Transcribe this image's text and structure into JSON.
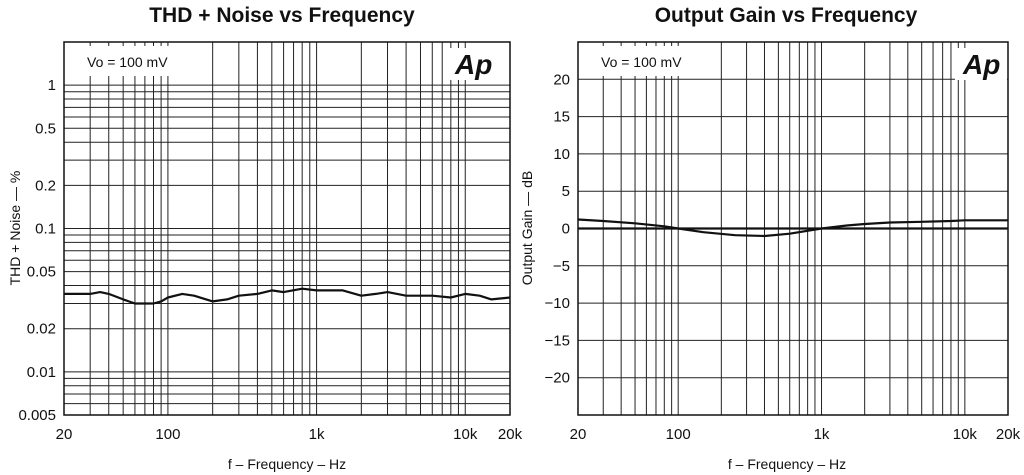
{
  "chart_data": [
    {
      "type": "line",
      "title": "THD + Noise vs Frequency",
      "xlabel": "f – Frequency – Hz",
      "ylabel": "THD + Noise — %",
      "x_scale": "log",
      "y_scale": "log",
      "xlim": [
        20,
        20000
      ],
      "ylim": [
        0.005,
        2
      ],
      "x_ticks": [
        {
          "v": 20,
          "label": "20"
        },
        {
          "v": 100,
          "label": "100"
        },
        {
          "v": 1000,
          "label": "1k"
        },
        {
          "v": 10000,
          "label": "10k"
        },
        {
          "v": 20000,
          "label": "20k"
        }
      ],
      "y_ticks": [
        {
          "v": 1,
          "label": "1"
        },
        {
          "v": 0.5,
          "label": "0.5"
        },
        {
          "v": 0.2,
          "label": "0.2"
        },
        {
          "v": 0.1,
          "label": "0.1"
        },
        {
          "v": 0.05,
          "label": "0.05"
        },
        {
          "v": 0.02,
          "label": "0.02"
        },
        {
          "v": 0.01,
          "label": "0.01"
        },
        {
          "v": 0.005,
          "label": "0.005"
        }
      ],
      "grid": true,
      "annotation": "Vo = 100 mV",
      "logo": "Ap",
      "series": [
        {
          "x": [
            20,
            25,
            30,
            35,
            40,
            50,
            60,
            70,
            80,
            90,
            100,
            125,
            150,
            200,
            250,
            300,
            400,
            500,
            600,
            800,
            1000,
            1500,
            2000,
            2500,
            3000,
            4000,
            5000,
            6000,
            8000,
            10000,
            12500,
            15000,
            20000
          ],
          "y": [
            0.035,
            0.035,
            0.035,
            0.036,
            0.035,
            0.032,
            0.03,
            0.03,
            0.03,
            0.031,
            0.033,
            0.035,
            0.034,
            0.031,
            0.032,
            0.034,
            0.035,
            0.037,
            0.036,
            0.038,
            0.037,
            0.037,
            0.034,
            0.035,
            0.036,
            0.034,
            0.034,
            0.034,
            0.033,
            0.035,
            0.034,
            0.032,
            0.033
          ]
        }
      ]
    },
    {
      "type": "line",
      "title": "Output Gain vs Frequency",
      "xlabel": "f – Frequency – Hz",
      "ylabel": "Output Gain — dB",
      "x_scale": "log",
      "y_scale": "linear",
      "xlim": [
        20,
        20000
      ],
      "ylim": [
        -25,
        25
      ],
      "x_ticks": [
        {
          "v": 20,
          "label": "20"
        },
        {
          "v": 100,
          "label": "100"
        },
        {
          "v": 1000,
          "label": "1k"
        },
        {
          "v": 10000,
          "label": "10k"
        },
        {
          "v": 20000,
          "label": "20k"
        }
      ],
      "y_ticks": [
        {
          "v": 20,
          "label": "20"
        },
        {
          "v": 15,
          "label": "15"
        },
        {
          "v": 10,
          "label": "10"
        },
        {
          "v": 5,
          "label": "5"
        },
        {
          "v": 0,
          "label": "0"
        },
        {
          "v": -5,
          "label": "−5"
        },
        {
          "v": -10,
          "label": "−10"
        },
        {
          "v": -15,
          "label": "−15"
        },
        {
          "v": -20,
          "label": "−20"
        }
      ],
      "grid": true,
      "annotation": "Vo = 100 mV",
      "logo": "Ap",
      "series": [
        {
          "x": [
            20,
            100,
            1000,
            10000,
            20000
          ],
          "y": [
            0,
            0,
            0,
            0,
            0
          ]
        },
        {
          "x": [
            20,
            30,
            50,
            80,
            100,
            150,
            250,
            400,
            600,
            1000,
            1500,
            2000,
            3000,
            5000,
            8000,
            10000,
            20000
          ],
          "y": [
            1.2,
            1.0,
            0.7,
            0.3,
            0.0,
            -0.5,
            -0.9,
            -1.0,
            -0.7,
            0.0,
            0.4,
            0.6,
            0.8,
            0.9,
            1.0,
            1.1,
            1.1
          ]
        }
      ]
    }
  ]
}
